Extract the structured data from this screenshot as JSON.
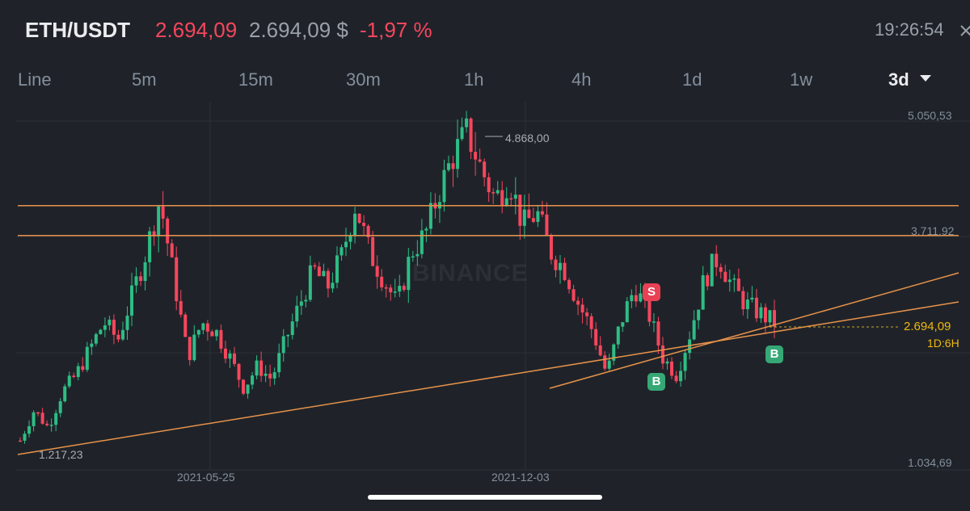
{
  "header": {
    "pair": "ETH/USDT",
    "price": "2.694,09",
    "price_usd": "2.694,09 $",
    "change": "-1,97 %",
    "time": "19:26:54",
    "price_color": "#f6465d"
  },
  "intervals": {
    "tabs": [
      {
        "label": "Line"
      },
      {
        "label": "5m"
      },
      {
        "label": "15m"
      },
      {
        "label": "30m"
      },
      {
        "label": "1h"
      },
      {
        "label": "4h"
      },
      {
        "label": "1d"
      },
      {
        "label": "1w"
      },
      {
        "label": "3d"
      }
    ],
    "selected": "3d"
  },
  "chart_data": {
    "type": "candlestick",
    "symbol": "ETH/USDT",
    "interval": "3d",
    "watermark": "BINANCE",
    "y_axis_labels": [
      "5.050,53",
      "3.711,92",
      "1.034,69"
    ],
    "ylim": [
      1034.69,
      5050.53
    ],
    "x_axis_labels": [
      "2021-05-25",
      "2021-12-03"
    ],
    "high_annotation": "4.868,00",
    "low_annotation": "1.217,23",
    "current_price": "2.694,09",
    "countdown": "1D:6H",
    "horizontal_levels": [
      4030,
      3690
    ],
    "up_color": "#2ebd85",
    "down_color": "#f6465d",
    "line_color": "#e8924a",
    "signals": [
      {
        "label": "S",
        "type": "sell"
      },
      {
        "label": "B",
        "type": "buy"
      },
      {
        "label": "B",
        "type": "buy"
      }
    ],
    "close_path": [
      1350,
      1700,
      1500,
      1900,
      2100,
      2400,
      2700,
      2500,
      3000,
      3500,
      4100,
      3200,
      2300,
      2700,
      2600,
      2300,
      1950,
      2200,
      2050,
      2500,
      2900,
      3300,
      3100,
      3450,
      4050,
      3500,
      3200,
      2900,
      3500,
      3700,
      4200,
      4600,
      4868,
      4450,
      4100,
      4350,
      3800,
      3950,
      3500,
      3300,
      2900,
      2600,
      2100,
      2700,
      3100,
      2800,
      2300,
      2100,
      2600,
      3200,
      3450,
      3100,
      2900,
      2800,
      2694
    ]
  }
}
